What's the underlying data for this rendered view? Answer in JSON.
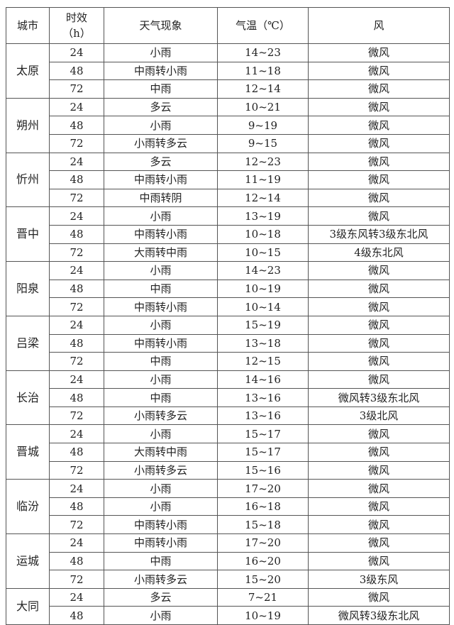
{
  "headers": [
    "城市",
    "时效",
    "（h）",
    "天气现象",
    "气温（℃）",
    "风"
  ],
  "groups": [
    {
      "city": "太原",
      "rows": [
        [
          "24",
          "小雨",
          "14~23",
          "微风"
        ],
        [
          "48",
          "中雨转小雨",
          "11~18",
          "微风"
        ],
        [
          "72",
          "中雨",
          "12~14",
          "微风"
        ]
      ]
    },
    {
      "city": "朔州",
      "rows": [
        [
          "24",
          "多云",
          "10~21",
          "微风"
        ],
        [
          "48",
          "小雨",
          "9~19",
          "微风"
        ],
        [
          "72",
          "小雨转多云",
          "9~15",
          "微风"
        ]
      ]
    },
    {
      "city": "忻州",
      "rows": [
        [
          "24",
          "多云",
          "12~23",
          "微风"
        ],
        [
          "48",
          "中雨转小雨",
          "11~19",
          "微风"
        ],
        [
          "72",
          "中雨转阴",
          "12~14",
          "微风"
        ]
      ]
    },
    {
      "city": "晋中",
      "rows": [
        [
          "24",
          "小雨",
          "13~19",
          "微风"
        ],
        [
          "48",
          "中雨转小雨",
          "10~18",
          "3级东风转3级东北风"
        ],
        [
          "72",
          "大雨转中雨",
          "10~15",
          "4级东北风"
        ]
      ]
    },
    {
      "city": "阳泉",
      "rows": [
        [
          "24",
          "小雨",
          "14~23",
          "微风"
        ],
        [
          "48",
          "中雨",
          "10~19",
          "微风"
        ],
        [
          "72",
          "中雨转小雨",
          "10~14",
          "微风"
        ]
      ]
    },
    {
      "city": "吕梁",
      "rows": [
        [
          "24",
          "小雨",
          "15~19",
          "微风"
        ],
        [
          "48",
          "中雨转小雨",
          "13~18",
          "微风"
        ],
        [
          "72",
          "中雨",
          "12~15",
          "微风"
        ]
      ]
    },
    {
      "city": "长治",
      "rows": [
        [
          "24",
          "小雨",
          "14~16",
          "微风"
        ],
        [
          "48",
          "中雨",
          "13~16",
          "微风转3级东北风"
        ],
        [
          "72",
          "小雨转多云",
          "13~16",
          "3级北风"
        ]
      ]
    },
    {
      "city": "晋城",
      "rows": [
        [
          "24",
          "小雨",
          "15~17",
          "微风"
        ],
        [
          "48",
          "大雨转中雨",
          "15~17",
          "微风"
        ],
        [
          "72",
          "小雨转多云",
          "15~16",
          "微风"
        ]
      ]
    },
    {
      "city": "临汾",
      "rows": [
        [
          "24",
          "小雨",
          "17~20",
          "微风"
        ],
        [
          "48",
          "小雨",
          "16~18",
          "微风"
        ],
        [
          "72",
          "中雨转小雨",
          "15~18",
          "微风"
        ]
      ]
    },
    {
      "city": "运城",
      "rows": [
        [
          "24",
          "中雨转小雨",
          "17~20",
          "微风"
        ],
        [
          "48",
          "中雨",
          "16~20",
          "微风"
        ],
        [
          "72",
          "小雨转多云",
          "15~20",
          "3级东风"
        ]
      ]
    },
    {
      "city": "大同",
      "rows": [
        [
          "24",
          "多云",
          "7~21",
          "微风"
        ],
        [
          "48",
          "小雨",
          "10~19",
          "微风转3级东北风"
        ]
      ]
    }
  ]
}
